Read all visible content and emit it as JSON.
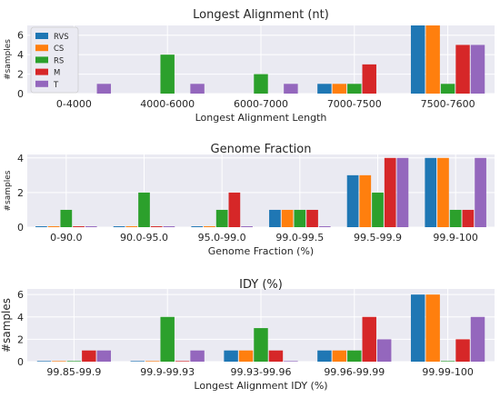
{
  "colors": {
    "background": "#eaeaf2",
    "grid": "#ffffff",
    "series": [
      "#1f77b4",
      "#ff7f0e",
      "#2ca02c",
      "#d62728",
      "#9467bd"
    ]
  },
  "chart_data": [
    {
      "type": "bar",
      "title": "Longest Alignment (nt)",
      "xlabel": "Longest Alignment Length",
      "ylabel": "#samples",
      "ylim": [
        0,
        7
      ],
      "yticks": [
        0,
        2,
        4,
        6
      ],
      "grid": true,
      "legend": "top-left",
      "categories": [
        "0-4000",
        "4000-6000",
        "6000-7000",
        "7000-7500",
        "7500-7600"
      ],
      "series": [
        {
          "name": "RVS",
          "values": [
            0,
            0,
            0,
            1,
            7
          ]
        },
        {
          "name": "CS",
          "values": [
            0,
            0,
            0,
            1,
            7
          ]
        },
        {
          "name": "RS",
          "values": [
            0,
            4,
            2,
            1,
            1
          ]
        },
        {
          "name": "M",
          "values": [
            0,
            0,
            0,
            3,
            5
          ]
        },
        {
          "name": "T",
          "values": [
            1,
            1,
            1,
            0,
            5
          ]
        }
      ]
    },
    {
      "type": "bar",
      "title": "Genome Fraction",
      "xlabel": "Genome Fraction (%)",
      "ylabel": "#samples",
      "ylim": [
        0,
        4.2
      ],
      "yticks": [
        0,
        2,
        4
      ],
      "grid": true,
      "legend": "none",
      "categories": [
        "0-90.0",
        "90.0-95.0",
        "95.0-99.0",
        "99.0-99.5",
        "99.5-99.9",
        "99.9-100"
      ],
      "series": [
        {
          "name": "RVS",
          "values": [
            0.05,
            0.05,
            0.05,
            1,
            3,
            4
          ]
        },
        {
          "name": "CS",
          "values": [
            0.05,
            0.05,
            0.05,
            1,
            3,
            4
          ]
        },
        {
          "name": "RS",
          "values": [
            1,
            2,
            1,
            1,
            2,
            1
          ]
        },
        {
          "name": "M",
          "values": [
            0.05,
            0.05,
            2,
            1,
            4,
            1
          ]
        },
        {
          "name": "T",
          "values": [
            0.05,
            0.05,
            0.05,
            0.05,
            4,
            4
          ]
        }
      ]
    },
    {
      "type": "bar",
      "title": "IDY (%)",
      "xlabel": "Longest Alignment IDY (%)",
      "ylabel": "#samples",
      "ylim": [
        0,
        6.5
      ],
      "yticks": [
        0,
        2,
        4,
        6
      ],
      "grid": true,
      "legend": "none",
      "categories": [
        "99.85-99.9",
        "99.9-99.93",
        "99.93-99.96",
        "99.96-99.99",
        "99.99-100"
      ],
      "series": [
        {
          "name": "RVS",
          "values": [
            0.05,
            0.05,
            1,
            1,
            6
          ]
        },
        {
          "name": "CS",
          "values": [
            0.05,
            0.05,
            1,
            1,
            6
          ]
        },
        {
          "name": "RS",
          "values": [
            0.05,
            4,
            3,
            1,
            0.05
          ]
        },
        {
          "name": "M",
          "values": [
            1,
            0.05,
            1,
            4,
            2
          ]
        },
        {
          "name": "T",
          "values": [
            1,
            1,
            0.05,
            2,
            4
          ]
        }
      ]
    }
  ]
}
